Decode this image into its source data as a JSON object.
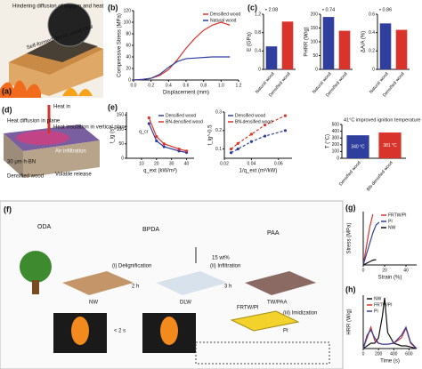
{
  "panels": {
    "a": {
      "label": "(a)",
      "oxygen": "Hindering diffusion of oxygen and heat",
      "char": "Self-formed dense wood char"
    },
    "d": {
      "label": "(d)",
      "heat_in": "Heat in",
      "diffusion": "Heat diffusion in plane",
      "insulation": "Heat insulation in vertical plane",
      "air": "Air infiltration",
      "bn": "30 μm h-BN",
      "wood": "Densified wood",
      "volatile": "Volatile release"
    },
    "f": {
      "label": "(f)",
      "oda": "ODA",
      "bpda": "BPDA",
      "paa": "PAA",
      "wt": "15 wt%",
      "nw": "NW",
      "dlw": "DLW",
      "twpaa": "TW/PAA",
      "frtw": "FRTW/PI",
      "pi": "PI",
      "step1": "(i) Delignification",
      "t1": "2 h",
      "step2": "(ii) Infiltration",
      "t2": "3 h",
      "step3": "(iii) Imidization",
      "time": "< 2 s"
    }
  },
  "chart_data": [
    {
      "type": "line",
      "panel_label": "(b)",
      "xlabel": "Displacement (mm)",
      "ylabel": "Compressive Stress (MPa)",
      "x": [
        0,
        0.1,
        0.2,
        0.3,
        0.4,
        0.5,
        0.6,
        0.7,
        0.8,
        0.9,
        1.0,
        1.1
      ],
      "series": [
        {
          "name": "Densified wood",
          "color": "#d9342b",
          "values": [
            0,
            1,
            3,
            8,
            18,
            35,
            55,
            72,
            86,
            95,
            100,
            95
          ]
        },
        {
          "name": "Natural wood",
          "color": "#2f3f9e",
          "values": [
            0,
            1,
            3,
            10,
            22,
            32,
            37,
            38,
            39,
            40,
            40,
            40
          ]
        }
      ],
      "xlim": [
        0,
        1.2
      ],
      "xticks": [
        {
          "value": 0,
          "label": "0.0"
        },
        0.2,
        0.4,
        0.6,
        0.8,
        {
          "value": 1,
          "label": "1.0"
        },
        1.2
      ],
      "ylim": [
        0,
        120
      ],
      "yticks": [
        0,
        20,
        40,
        60,
        80,
        100,
        120
      ],
      "legend": "right"
    },
    {
      "type": "bar",
      "panel_label": "(c)",
      "ylabel": "E (GPa)",
      "annotation": "• 2.08",
      "categories": [
        "Natural wood",
        "Densified wood"
      ],
      "values": [
        0.5,
        1.04
      ],
      "colors": [
        "#2f3f9e",
        "#d9342b"
      ],
      "ylim": [
        0,
        1.2
      ],
      "yticks": [
        0,
        0.4,
        0.8,
        1.2
      ]
    },
    {
      "type": "bar",
      "ylabel": "PHRR (W/g)",
      "annotation": "• 0.74",
      "categories": [
        "Natural wood",
        "Densified wood"
      ],
      "values": [
        190,
        140
      ],
      "colors": [
        "#2f3f9e",
        "#d9342b"
      ],
      "ylim": [
        0,
        200
      ],
      "yticks": [
        0,
        50,
        100,
        150,
        200
      ]
    },
    {
      "type": "bar",
      "ylabel": "ΔA/A (%)",
      "annotation": "• 0.86",
      "categories": [
        "Natural wood",
        "Densified wood"
      ],
      "values": [
        0.5,
        0.43
      ],
      "colors": [
        "#2f3f9e",
        "#d9342b"
      ],
      "ylim": [
        0,
        0.6
      ],
      "yticks": [
        0,
        0.2,
        0.4,
        0.6
      ]
    },
    {
      "type": "line",
      "panel_label": "(e)",
      "xlabel": "q_ext (kW/m²)",
      "ylabel": "t_ig (s)",
      "annotation": "q_cr",
      "markers": true,
      "x": [
        15,
        20,
        25,
        35,
        40
      ],
      "series": [
        {
          "name": "Densified wood",
          "color": "#2f3f9e",
          "values": [
            120,
            60,
            40,
            25,
            20
          ]
        },
        {
          "name": "BN-densified wood",
          "color": "#d9342b",
          "values": [
            140,
            75,
            50,
            32,
            25
          ]
        }
      ],
      "xlim": [
        0,
        45
      ],
      "xticks": [
        10,
        20,
        30,
        40
      ],
      "ylim": [
        0,
        160
      ],
      "yticks": [
        0,
        50,
        100,
        150
      ],
      "legend": "upper right"
    },
    {
      "type": "line",
      "xlabel": "1/q_ext (m²/kW)",
      "ylabel": "t_ig^-0.5",
      "markers": true,
      "dashed": true,
      "x": [
        0.025,
        0.03,
        0.04,
        0.05,
        0.065
      ],
      "series": [
        {
          "name": "Densified wood",
          "color": "#2f3f9e",
          "values": [
            0.08,
            0.1,
            0.14,
            0.17,
            0.2
          ]
        },
        {
          "name": "BN-densified wood",
          "color": "#d9342b",
          "values": [
            0.1,
            0.13,
            0.18,
            0.23,
            0.28
          ]
        }
      ],
      "xlim": [
        0.02,
        0.07
      ],
      "xticks": [
        0.02,
        0.04,
        0.06
      ],
      "ylim": [
        0.05,
        0.3
      ],
      "yticks": [
        0.1,
        0.2,
        0.3
      ],
      "legend": "upper left"
    },
    {
      "type": "bar",
      "ylabel": "T (°C)",
      "annotation": "41°C improved ignition temperature",
      "categories": [
        "Densified wood",
        "BN-densified wood"
      ],
      "values": [
        340,
        381
      ],
      "value_labels": [
        "340 °C",
        "381 °C"
      ],
      "colors": [
        "#2f3f9e",
        "#d9342b"
      ],
      "ylim": [
        0,
        500
      ],
      "yticks": [
        0,
        100,
        200,
        300,
        400,
        500
      ]
    },
    {
      "type": "line",
      "panel_label": "(g)",
      "xlabel": "Strain (%)",
      "ylabel": "Stress (MPa)",
      "x": [
        0,
        3,
        6,
        9,
        12,
        15,
        20
      ],
      "series": [
        {
          "name": "FRTW/PI",
          "color": "#d9342b",
          "values": [
            0,
            35,
            70,
            95,
            null,
            null,
            null
          ]
        },
        {
          "name": "PI",
          "color": "#2f3f9e",
          "values": [
            0,
            20,
            40,
            60,
            75,
            80,
            null
          ]
        },
        {
          "name": "NW",
          "color": "#111111",
          "values": [
            0,
            3,
            6,
            9,
            10,
            null,
            null
          ]
        }
      ],
      "xlim": [
        0,
        50
      ],
      "xticks": [
        0,
        20,
        40
      ],
      "ylim": [
        0,
        100
      ],
      "legend": "upper right"
    },
    {
      "type": "line",
      "panel_label": "(h)",
      "xlabel": "Time (s)",
      "ylabel": "HRR (W/g)",
      "x": [
        0,
        50,
        100,
        150,
        200,
        250,
        280,
        320,
        400,
        500,
        560,
        620,
        700
      ],
      "series": [
        {
          "name": "NW",
          "color": "#111111",
          "values": [
            0,
            5,
            10,
            10,
            20,
            60,
            95,
            30,
            10,
            5,
            5,
            3,
            0
          ]
        },
        {
          "name": "FRTW/PI",
          "color": "#d9342b",
          "values": [
            0,
            20,
            40,
            15,
            10,
            8,
            8,
            8,
            10,
            20,
            38,
            10,
            0
          ]
        },
        {
          "name": "PI",
          "color": "#2f3f9e",
          "values": [
            0,
            25,
            35,
            20,
            10,
            8,
            8,
            8,
            10,
            25,
            40,
            12,
            0
          ]
        }
      ],
      "xlim": [
        0,
        700
      ],
      "xticks": [
        0,
        200,
        400,
        600
      ],
      "ylim": [
        0,
        100
      ],
      "legend": "upper left"
    }
  ]
}
